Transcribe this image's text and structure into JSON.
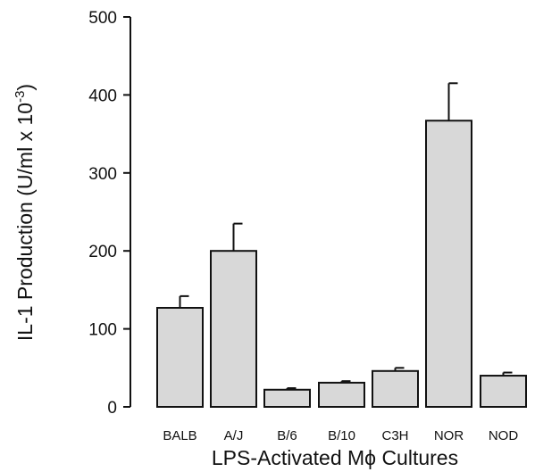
{
  "chart_data": {
    "type": "bar",
    "title": "",
    "xlabel": "LPS-Activated Mϕ Cultures",
    "ylabel_parts": [
      "IL-1 Production (U/ml x 10",
      "-3",
      ")"
    ],
    "ylim": [
      0,
      500
    ],
    "yticks": [
      "0",
      "100",
      "200",
      "300",
      "400",
      "500"
    ],
    "categories": [
      "BALB",
      "A/J",
      "B/6",
      "B/10",
      "C3H",
      "NOR",
      "NOD"
    ],
    "series": [
      {
        "values": [
          127,
          200,
          22,
          31,
          46,
          367,
          40
        ],
        "error": [
          15,
          35,
          2,
          2,
          4,
          48,
          4
        ]
      }
    ],
    "grid": false,
    "bar_fill": "#d8d8d8",
    "bar_stroke": "#111111"
  }
}
